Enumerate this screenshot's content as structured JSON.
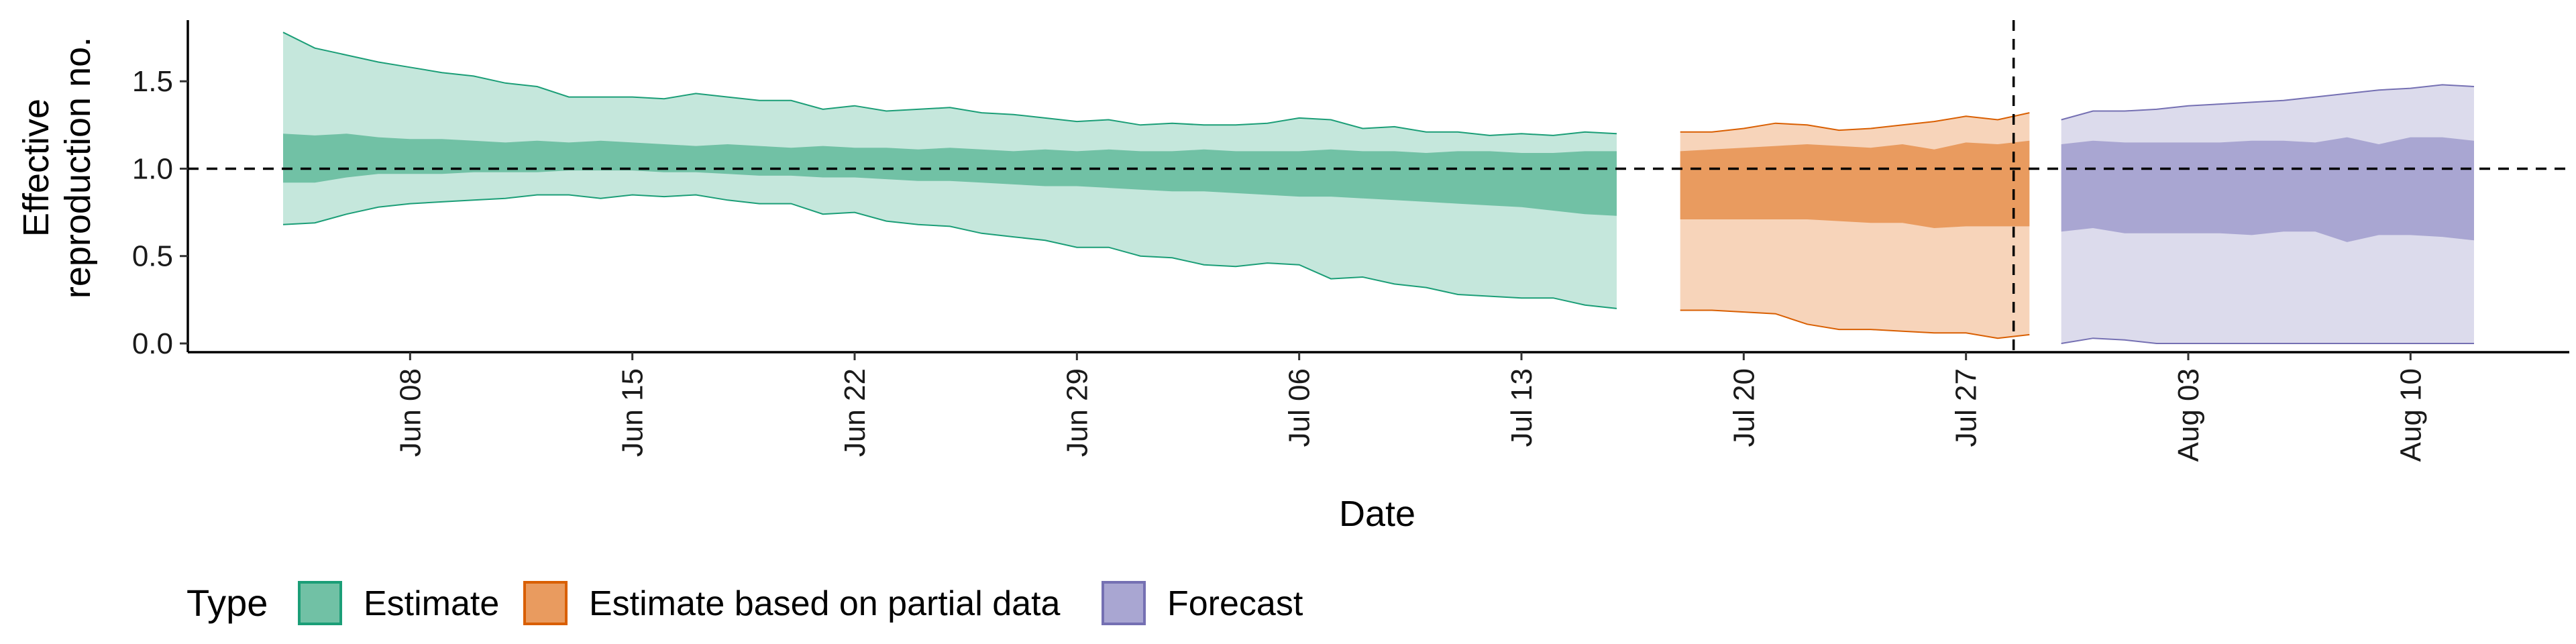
{
  "chart_data": {
    "type": "area",
    "xlabel": "Date",
    "ylabel": [
      "Effective",
      "reproduction no."
    ],
    "ylim": [
      -0.05,
      1.85
    ],
    "xlim": [
      "2020-06-01",
      "2020-08-15"
    ],
    "y_ticks": [
      0.0,
      0.5,
      1.0,
      1.5
    ],
    "y_tick_labels": [
      "0.0",
      "0.5",
      "1.0",
      "1.5"
    ],
    "x_ticks": [
      "2020-06-08",
      "2020-06-15",
      "2020-06-22",
      "2020-06-29",
      "2020-07-06",
      "2020-07-13",
      "2020-07-20",
      "2020-07-27",
      "2020-08-03",
      "2020-08-10"
    ],
    "x_tick_labels": [
      "Jun 08",
      "Jun 15",
      "Jun 22",
      "Jun 29",
      "Jul 06",
      "Jul 13",
      "Jul 20",
      "Jul 27",
      "Aug 03",
      "Aug 10"
    ],
    "reference_line_y": 1.0,
    "reference_line_x": "2020-07-28",
    "grid": false,
    "legend": {
      "title": "Type",
      "position": "bottom",
      "items": [
        "Estimate",
        "Estimate based on partial data",
        "Forecast"
      ]
    },
    "series": [
      {
        "name": "Estimate",
        "outer_color": "#c5e7dc",
        "inner_color": "#71c1a5",
        "line_color": "#1b9e77",
        "dates": [
          "2020-06-04",
          "2020-06-05",
          "2020-06-06",
          "2020-06-07",
          "2020-06-08",
          "2020-06-09",
          "2020-06-10",
          "2020-06-11",
          "2020-06-12",
          "2020-06-13",
          "2020-06-14",
          "2020-06-15",
          "2020-06-16",
          "2020-06-17",
          "2020-06-18",
          "2020-06-19",
          "2020-06-20",
          "2020-06-21",
          "2020-06-22",
          "2020-06-23",
          "2020-06-24",
          "2020-06-25",
          "2020-06-26",
          "2020-06-27",
          "2020-06-28",
          "2020-06-29",
          "2020-06-30",
          "2020-07-01",
          "2020-07-02",
          "2020-07-03",
          "2020-07-04",
          "2020-07-05",
          "2020-07-06",
          "2020-07-07",
          "2020-07-08",
          "2020-07-09",
          "2020-07-10",
          "2020-07-11",
          "2020-07-12",
          "2020-07-13",
          "2020-07-14",
          "2020-07-15",
          "2020-07-16"
        ],
        "upper_90": [
          1.78,
          1.69,
          1.65,
          1.61,
          1.58,
          1.55,
          1.53,
          1.49,
          1.47,
          1.41,
          1.41,
          1.41,
          1.4,
          1.43,
          1.41,
          1.39,
          1.39,
          1.34,
          1.36,
          1.33,
          1.34,
          1.35,
          1.32,
          1.31,
          1.29,
          1.27,
          1.28,
          1.25,
          1.26,
          1.25,
          1.25,
          1.26,
          1.29,
          1.28,
          1.23,
          1.24,
          1.21,
          1.21,
          1.19,
          1.2,
          1.19,
          1.21,
          1.2
        ],
        "upper_50": [
          1.2,
          1.19,
          1.2,
          1.18,
          1.17,
          1.17,
          1.16,
          1.15,
          1.16,
          1.15,
          1.16,
          1.15,
          1.14,
          1.13,
          1.14,
          1.13,
          1.12,
          1.13,
          1.12,
          1.12,
          1.11,
          1.12,
          1.11,
          1.1,
          1.11,
          1.1,
          1.11,
          1.1,
          1.1,
          1.11,
          1.1,
          1.1,
          1.1,
          1.11,
          1.1,
          1.1,
          1.09,
          1.1,
          1.1,
          1.09,
          1.09,
          1.1,
          1.1
        ],
        "lower_50": [
          0.92,
          0.92,
          0.95,
          0.97,
          0.97,
          0.97,
          0.98,
          0.98,
          0.98,
          0.99,
          0.99,
          0.99,
          0.98,
          0.98,
          0.97,
          0.96,
          0.96,
          0.95,
          0.95,
          0.94,
          0.93,
          0.93,
          0.92,
          0.91,
          0.9,
          0.9,
          0.89,
          0.88,
          0.87,
          0.87,
          0.86,
          0.85,
          0.84,
          0.84,
          0.83,
          0.82,
          0.81,
          0.8,
          0.79,
          0.78,
          0.76,
          0.74,
          0.73
        ],
        "lower_90": [
          0.68,
          0.69,
          0.74,
          0.78,
          0.8,
          0.81,
          0.82,
          0.83,
          0.85,
          0.85,
          0.83,
          0.85,
          0.84,
          0.85,
          0.82,
          0.8,
          0.8,
          0.74,
          0.75,
          0.7,
          0.68,
          0.67,
          0.63,
          0.61,
          0.59,
          0.55,
          0.55,
          0.5,
          0.49,
          0.45,
          0.44,
          0.46,
          0.45,
          0.37,
          0.38,
          0.34,
          0.32,
          0.28,
          0.27,
          0.26,
          0.26,
          0.22,
          0.2
        ]
      },
      {
        "name": "Estimate based on partial data",
        "outer_color": "#f7d4ba",
        "inner_color": "#e99b5f",
        "line_color": "#d95f02",
        "dates": [
          "2020-07-18",
          "2020-07-19",
          "2020-07-20",
          "2020-07-21",
          "2020-07-22",
          "2020-07-23",
          "2020-07-24",
          "2020-07-25",
          "2020-07-26",
          "2020-07-27",
          "2020-07-28",
          "2020-07-29"
        ],
        "upper_90": [
          1.21,
          1.21,
          1.23,
          1.26,
          1.25,
          1.22,
          1.23,
          1.25,
          1.27,
          1.3,
          1.28,
          1.32
        ],
        "upper_50": [
          1.1,
          1.11,
          1.12,
          1.13,
          1.14,
          1.13,
          1.12,
          1.14,
          1.11,
          1.15,
          1.14,
          1.16
        ],
        "lower_50": [
          0.71,
          0.71,
          0.71,
          0.71,
          0.71,
          0.7,
          0.69,
          0.69,
          0.66,
          0.67,
          0.67,
          0.67
        ],
        "lower_90": [
          0.19,
          0.19,
          0.18,
          0.17,
          0.11,
          0.08,
          0.08,
          0.07,
          0.06,
          0.06,
          0.03,
          0.05
        ]
      },
      {
        "name": "Forecast",
        "outer_color": "#dcdbec",
        "inner_color": "#a9a6d2",
        "line_color": "#7570b3",
        "dates": [
          "2020-07-30",
          "2020-07-31",
          "2020-08-01",
          "2020-08-02",
          "2020-08-03",
          "2020-08-04",
          "2020-08-05",
          "2020-08-06",
          "2020-08-07",
          "2020-08-08",
          "2020-08-09",
          "2020-08-10",
          "2020-08-11",
          "2020-08-12"
        ],
        "upper_90": [
          1.28,
          1.33,
          1.33,
          1.34,
          1.36,
          1.37,
          1.38,
          1.39,
          1.41,
          1.43,
          1.45,
          1.46,
          1.48,
          1.47
        ],
        "upper_50": [
          1.14,
          1.16,
          1.15,
          1.15,
          1.15,
          1.15,
          1.16,
          1.16,
          1.15,
          1.18,
          1.14,
          1.18,
          1.18,
          1.16
        ],
        "lower_50": [
          0.64,
          0.66,
          0.63,
          0.63,
          0.63,
          0.63,
          0.62,
          0.64,
          0.64,
          0.58,
          0.62,
          0.62,
          0.61,
          0.59
        ],
        "lower_90": [
          0.0,
          0.03,
          0.02,
          0.0,
          0.0,
          0.0,
          0.0,
          0.0,
          0.0,
          0.0,
          0.0,
          0.0,
          0.0,
          0.0
        ]
      }
    ]
  }
}
